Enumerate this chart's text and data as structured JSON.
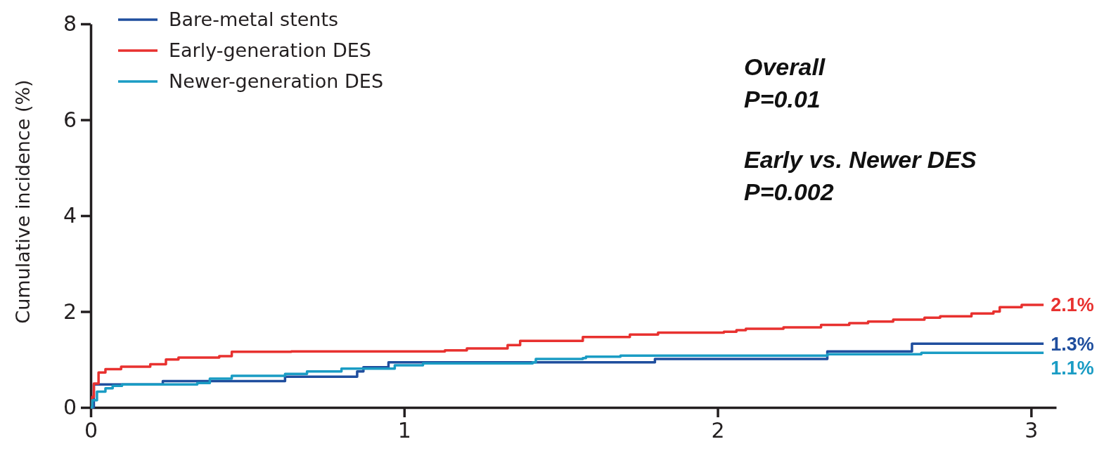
{
  "chart_data": {
    "type": "step",
    "ylabel": "Cumulative incidence (%)",
    "xlim": [
      0,
      3.08
    ],
    "xticks": [
      0,
      1,
      2,
      3
    ],
    "ylim": [
      0,
      8
    ],
    "yticks": [
      0,
      2,
      4,
      6,
      8
    ],
    "grid": false,
    "legend": "top left",
    "series": [
      {
        "name": "Bare-metal stents",
        "color": "#1f4e9e",
        "x": [
          0,
          0.01,
          0.23,
          0.62,
          0.85,
          0.87,
          0.95,
          1.8,
          2.35,
          2.62,
          3.04
        ],
        "values": [
          0,
          0.48,
          0.55,
          0.64,
          0.75,
          0.84,
          0.94,
          1.01,
          1.17,
          1.33,
          1.33
        ],
        "value_labels": [
          null,
          null,
          null,
          null,
          null,
          null,
          null,
          null,
          null,
          null,
          "1.3%"
        ]
      },
      {
        "name": "Early-generation DES",
        "color": "#e8312f",
        "x": [
          0,
          0.005,
          0.01,
          0.025,
          0.047,
          0.097,
          0.19,
          0.24,
          0.28,
          0.41,
          0.45,
          0.64,
          1.13,
          1.2,
          1.33,
          1.37,
          1.51,
          1.57,
          1.72,
          1.81,
          2.02,
          2.06,
          2.09,
          2.21,
          2.33,
          2.42,
          2.48,
          2.56,
          2.66,
          2.71,
          2.81,
          2.88,
          2.9,
          2.97,
          3.04
        ],
        "values": [
          0,
          0.22,
          0.5,
          0.73,
          0.8,
          0.85,
          0.9,
          1.0,
          1.04,
          1.07,
          1.16,
          1.17,
          1.19,
          1.23,
          1.3,
          1.39,
          1.39,
          1.47,
          1.52,
          1.56,
          1.58,
          1.61,
          1.64,
          1.67,
          1.72,
          1.76,
          1.79,
          1.83,
          1.87,
          1.9,
          1.96,
          2.0,
          2.09,
          2.14,
          2.14
        ],
        "value_labels": [
          null,
          null,
          null,
          null,
          null,
          null,
          null,
          null,
          null,
          null,
          null,
          null,
          null,
          null,
          null,
          null,
          null,
          null,
          null,
          null,
          null,
          null,
          null,
          null,
          null,
          null,
          null,
          null,
          null,
          null,
          null,
          null,
          null,
          null,
          "2.1%"
        ]
      },
      {
        "name": "Newer-generation DES",
        "color": "#1a9cc4",
        "x": [
          0,
          0.005,
          0.02,
          0.047,
          0.07,
          0.1,
          0.34,
          0.38,
          0.45,
          0.62,
          0.69,
          0.8,
          0.97,
          1.06,
          1.41,
          1.42,
          1.57,
          1.58,
          1.69,
          2.03,
          2.35,
          2.65,
          3.04
        ],
        "values": [
          0,
          0.15,
          0.33,
          0.4,
          0.45,
          0.48,
          0.51,
          0.6,
          0.66,
          0.7,
          0.75,
          0.81,
          0.88,
          0.92,
          0.94,
          1.01,
          1.03,
          1.06,
          1.08,
          1.08,
          1.11,
          1.14,
          1.14
        ],
        "value_labels": [
          null,
          null,
          null,
          null,
          null,
          null,
          null,
          null,
          null,
          null,
          null,
          null,
          null,
          null,
          null,
          null,
          null,
          null,
          null,
          null,
          null,
          null,
          "1.1%"
        ]
      }
    ],
    "annotations": [
      "Overall\nP=0.01",
      "Early vs. Newer DES\nP=0.002"
    ]
  }
}
